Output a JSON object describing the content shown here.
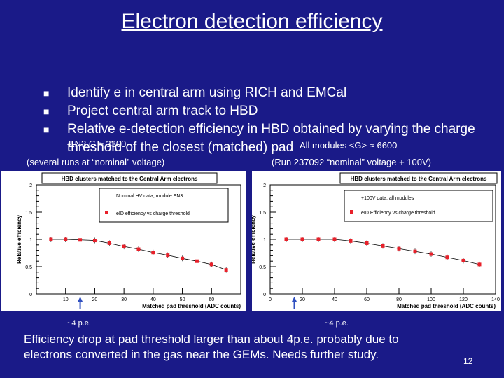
{
  "slide": {
    "title": "Electron detection efficiency",
    "bullets": [
      "Identify e in central arm  using RICH and EMCal",
      "Project central arm track to HBD",
      "Relative e-detection efficiency in HBD obtained by varying the charge threshold of the closest (matched) pad"
    ],
    "overlay_left": "EN3    G ≈ 3300",
    "overlay_right": "All modules <G>  ≈ 6600",
    "caption_left": "(several runs at  “nominal” voltage)",
    "caption_right": "(Run 237092  “nominal” voltage + 100V)",
    "arrow_left": "~4 p.e.",
    "arrow_right": "~4 p.e.",
    "footer": "Efficiency drop at pad threshold larger than about 4p.e. probably due to electrons converted in the gas near the GEMs. Needs further study.",
    "page_number": "12"
  },
  "chart_data": [
    {
      "type": "scatter",
      "title": "HBD clusters matched to the Central Arm electrons",
      "xlabel": "Matched pad threshold (ADC counts)",
      "ylabel": "Relative efficiency",
      "xlim": [
        0,
        70
      ],
      "ylim": [
        0,
        2
      ],
      "xticks": [
        10,
        20,
        30,
        40,
        50,
        60
      ],
      "yticks": [
        "0",
        "0.5",
        "1",
        "1.5",
        "2"
      ],
      "legend_text": "Nominal HV data, module EN3",
      "series": [
        {
          "name": "eID efficiency vs charge threshold",
          "color": "#e8202a",
          "x": [
            5,
            10,
            15,
            20,
            25,
            30,
            35,
            40,
            45,
            50,
            55,
            60,
            65
          ],
          "y": [
            1.0,
            1.0,
            0.99,
            0.98,
            0.93,
            0.87,
            0.82,
            0.76,
            0.71,
            0.65,
            0.6,
            0.54,
            0.44
          ]
        }
      ]
    },
    {
      "type": "scatter",
      "title": "HBD clusters matched to the Central Arm electrons",
      "xlabel": "Matched pad threshold (ADC counts)",
      "ylabel": "Relative efficiency",
      "xlim": [
        0,
        140
      ],
      "ylim": [
        0,
        2
      ],
      "xticks": [
        0,
        20,
        40,
        60,
        80,
        100,
        120,
        140
      ],
      "yticks": [
        "0",
        "0.5",
        "1",
        "1.5",
        "2"
      ],
      "legend_text": "+100V data, all modules",
      "series": [
        {
          "name": "eID Efficiency vs charge threshold",
          "color": "#e8202a",
          "x": [
            10,
            20,
            30,
            40,
            50,
            60,
            70,
            80,
            90,
            100,
            110,
            120,
            130
          ],
          "y": [
            1.0,
            1.0,
            1.0,
            1.0,
            0.97,
            0.93,
            0.88,
            0.83,
            0.78,
            0.73,
            0.67,
            0.61,
            0.54
          ]
        }
      ]
    }
  ]
}
